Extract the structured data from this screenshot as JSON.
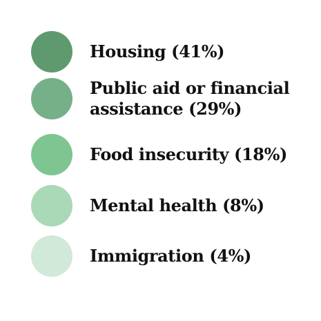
{
  "legend": {
    "items": [
      {
        "lines": [
          "Housing (41%)"
        ],
        "color": "#5f9a6e"
      },
      {
        "lines": [
          "Public aid or financial",
          "assistance (29%)"
        ],
        "color": "#76b088"
      },
      {
        "lines": [
          "Food insecurity (18%)"
        ],
        "color": "#7ec592"
      },
      {
        "lines": [
          "Mental health (8%)"
        ],
        "color": "#a9d9b6"
      },
      {
        "lines": [
          "Immigration (4%)"
        ],
        "color": "#d1e9d8"
      }
    ]
  }
}
